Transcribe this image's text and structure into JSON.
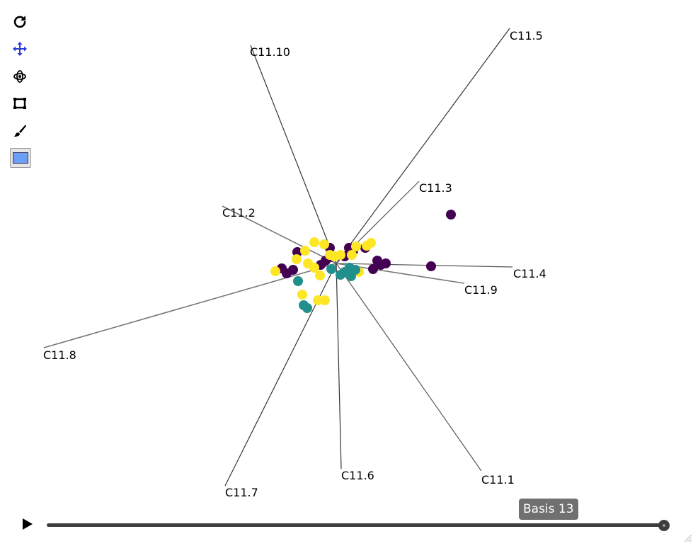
{
  "toolbar": {
    "tools": [
      {
        "name": "reset",
        "icon": "reset-icon"
      },
      {
        "name": "pan",
        "icon": "pan-icon",
        "active": true,
        "color": "#2a3bd6"
      },
      {
        "name": "rotate",
        "icon": "rotate-icon"
      },
      {
        "name": "zoom-box",
        "icon": "zoom-box-icon"
      },
      {
        "name": "brush",
        "icon": "brush-icon"
      },
      {
        "name": "color",
        "icon": "color-swatch",
        "color": "#6a9ff5"
      }
    ]
  },
  "axes": [
    {
      "name": "C11.1"
    },
    {
      "name": "C11.2"
    },
    {
      "name": "C11.3"
    },
    {
      "name": "C11.4"
    },
    {
      "name": "C11.5"
    },
    {
      "name": "C11.6"
    },
    {
      "name": "C11.7"
    },
    {
      "name": "C11.8"
    },
    {
      "name": "C11.9"
    },
    {
      "name": "C11.10"
    }
  ],
  "clusters": {
    "purple": "#440154",
    "teal": "#21908c",
    "yellow": "#fde725"
  },
  "playback": {
    "basis_label": "Basis 13",
    "current_basis": 13
  }
}
